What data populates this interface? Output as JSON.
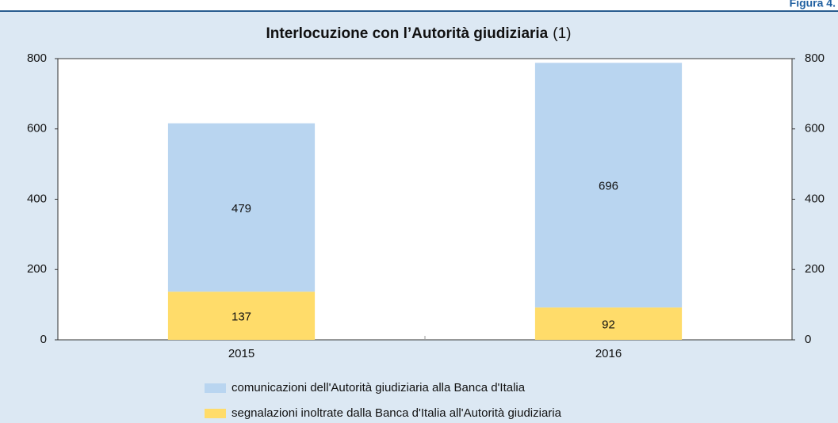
{
  "figure_label": "Figura 4.",
  "chart_data": {
    "type": "stacked_bar",
    "title": "Interlocuzione con l’Autorità giudiziaria",
    "title_note": "(1)",
    "categories": [
      "2015",
      "2016"
    ],
    "series": [
      {
        "name": "comunicazioni dell'Autorità giudiziaria alla Banca d'Italia",
        "color": "#b9d5f0",
        "values": [
          479,
          696
        ]
      },
      {
        "name": "segnalazioni inoltrate dalla Banca d'Italia all'Autorità giudiziaria",
        "color": "#ffdc6a",
        "values": [
          137,
          92
        ]
      }
    ],
    "ylim": [
      0,
      800
    ],
    "yticks": [
      0,
      200,
      400,
      600,
      800
    ],
    "y2lim": [
      0,
      800
    ],
    "y2ticks": [
      0,
      200,
      400,
      600,
      800
    ],
    "legend": "bottom"
  }
}
